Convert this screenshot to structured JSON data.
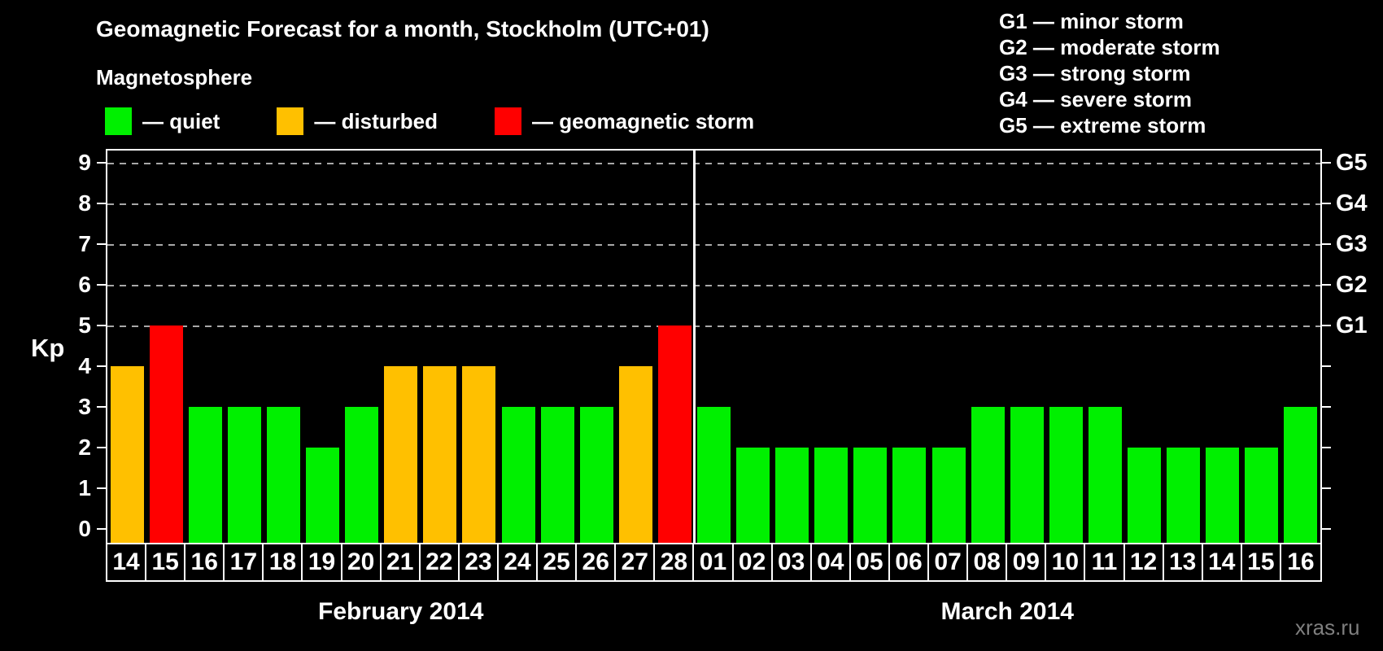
{
  "header": {
    "title": "Geomagnetic Forecast for a month, Stockholm (UTC+01)",
    "subtitle": "Magnetosphere"
  },
  "legend": {
    "items": [
      {
        "key": "quiet",
        "label": "— quiet",
        "color": "#00f000"
      },
      {
        "key": "disturbed",
        "label": "— disturbed",
        "color": "#ffc000"
      },
      {
        "key": "storm",
        "label": "— geomagnetic storm",
        "color": "#ff0000"
      }
    ]
  },
  "storm_scale": {
    "items": [
      "G1 — minor storm",
      "G2 — moderate storm",
      "G3 — strong storm",
      "G4 — severe storm",
      "G5 — extreme storm"
    ]
  },
  "watermark": "xras.ru",
  "chart_data": {
    "type": "bar",
    "title": "Geomagnetic Forecast for a month, Stockholm (UTC+01)",
    "subtitle": "Magnetosphere",
    "ylabel": "Kp",
    "ylim": [
      0,
      9.3
    ],
    "yticks": [
      0,
      1,
      2,
      3,
      4,
      5,
      6,
      7,
      8,
      9
    ],
    "gridlines_at": [
      5,
      6,
      7,
      8,
      9
    ],
    "grid_style": "dashed",
    "right_axis": [
      {
        "kp": 5,
        "label": "G1"
      },
      {
        "kp": 6,
        "label": "G2"
      },
      {
        "kp": 7,
        "label": "G3"
      },
      {
        "kp": 8,
        "label": "G4"
      },
      {
        "kp": 9,
        "label": "G5"
      }
    ],
    "status_colors": {
      "quiet": "#00f000",
      "disturbed": "#ffc000",
      "storm": "#ff0000"
    },
    "months": [
      {
        "label": "February 2014",
        "days": [
          "14",
          "15",
          "16",
          "17",
          "18",
          "19",
          "20",
          "21",
          "22",
          "23",
          "24",
          "25",
          "26",
          "27",
          "28"
        ],
        "values": [
          4,
          5,
          3,
          3,
          3,
          2,
          3,
          4,
          4,
          4,
          3,
          3,
          3,
          4,
          5
        ],
        "status": [
          "disturbed",
          "storm",
          "quiet",
          "quiet",
          "quiet",
          "quiet",
          "quiet",
          "disturbed",
          "disturbed",
          "disturbed",
          "quiet",
          "quiet",
          "quiet",
          "disturbed",
          "storm"
        ]
      },
      {
        "label": "March 2014",
        "days": [
          "01",
          "02",
          "03",
          "04",
          "05",
          "06",
          "07",
          "08",
          "09",
          "10",
          "11",
          "12",
          "13",
          "14",
          "15",
          "16"
        ],
        "values": [
          3,
          2,
          2,
          2,
          2,
          2,
          2,
          3,
          3,
          3,
          3,
          2,
          2,
          2,
          2,
          3
        ],
        "status": [
          "quiet",
          "quiet",
          "quiet",
          "quiet",
          "quiet",
          "quiet",
          "quiet",
          "quiet",
          "quiet",
          "quiet",
          "quiet",
          "quiet",
          "quiet",
          "quiet",
          "quiet",
          "quiet"
        ]
      }
    ]
  }
}
